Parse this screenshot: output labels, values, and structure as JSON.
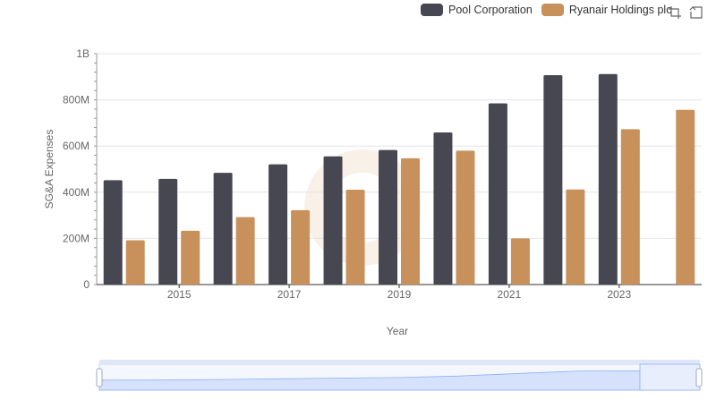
{
  "colors": {
    "pool": "#474752",
    "ryanair": "#c8915c",
    "grid": "#e4e4ec",
    "axis": "#666666",
    "zoom_fill": "#d6e2fb",
    "zoom_line": "#8fb0f7"
  },
  "legend": {
    "items": [
      {
        "label": "Pool Corporation"
      },
      {
        "label": "Ryanair Holdings plc"
      }
    ]
  },
  "toolbox": {
    "icons": [
      "zoom-icon",
      "reset-icon"
    ]
  },
  "chart_data": {
    "type": "bar",
    "title": "",
    "xlabel": "Year",
    "ylabel": "SG&A Expenses",
    "categories": [
      "2014",
      "2015",
      "2016",
      "2017",
      "2018",
      "2019",
      "2020",
      "2021",
      "2022",
      "2023",
      "2024"
    ],
    "x_tick_labels": [
      "2015",
      "2017",
      "2019",
      "2021",
      "2023"
    ],
    "y_tick_labels": [
      "0",
      "200M",
      "400M",
      "600M",
      "800M",
      "1B"
    ],
    "ylim": [
      0,
      1000000000
    ],
    "grid": true,
    "legend_position": "top-right",
    "series": [
      {
        "name": "Pool Corporation",
        "values": [
          452000000,
          458000000,
          484000000,
          521000000,
          555000000,
          583000000,
          659000000,
          785000000,
          907000000,
          912000000,
          null
        ]
      },
      {
        "name": "Ryanair Holdings plc",
        "values": [
          192000000,
          233000000,
          292000000,
          322000000,
          411000000,
          547000000,
          580000000,
          200000000,
          412000000,
          673000000,
          757000000
        ]
      }
    ]
  }
}
